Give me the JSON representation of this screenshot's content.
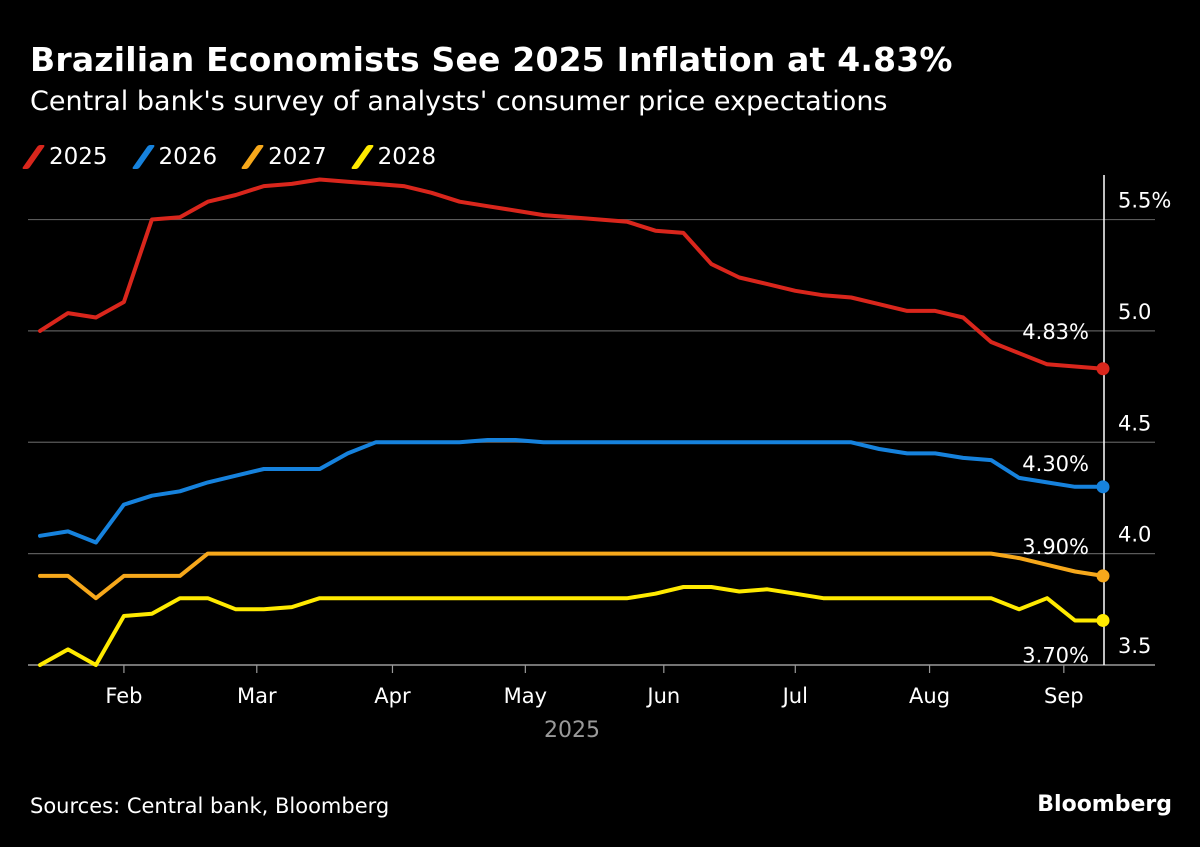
{
  "title": "Brazilian Economists See 2025 Inflation at 4.83%",
  "subtitle": "Central bank's survey of analysts' consumer price expectations",
  "source": "Sources: Central bank, Bloomberg",
  "brand": "Bloomberg",
  "chart_data": {
    "type": "line",
    "xlabel": "2025",
    "ylabel": "",
    "ylim": [
      3.5,
      5.7
    ],
    "xlim": [
      0,
      38
    ],
    "x_unit": "weeks since early January 2025",
    "y_ticks": [
      {
        "value": 3.5,
        "label": "3.5"
      },
      {
        "value": 4.0,
        "label": "4.0"
      },
      {
        "value": 4.5,
        "label": "4.5"
      },
      {
        "value": 5.0,
        "label": "5.0"
      },
      {
        "value": 5.5,
        "label": "5.5%"
      }
    ],
    "x_ticks": [
      {
        "x": 3.0,
        "label": "Feb"
      },
      {
        "x": 7.75,
        "label": "Mar"
      },
      {
        "x": 12.6,
        "label": "Apr"
      },
      {
        "x": 17.35,
        "label": "May"
      },
      {
        "x": 22.3,
        "label": "Jun"
      },
      {
        "x": 27.0,
        "label": "Jul"
      },
      {
        "x": 31.8,
        "label": "Aug"
      },
      {
        "x": 36.6,
        "label": "Sep"
      }
    ],
    "grid": true,
    "legend": "top-left",
    "series": [
      {
        "name": "2025",
        "color": "#d9261c",
        "end_label": "4.83%",
        "x": [
          0,
          1,
          2,
          3,
          4,
          5,
          6,
          7,
          8,
          9,
          10,
          11,
          12,
          13,
          14,
          15,
          16,
          17,
          18,
          19,
          20,
          21,
          22,
          23,
          24,
          25,
          26,
          27,
          28,
          29,
          30,
          31,
          32,
          33,
          34,
          35,
          36,
          37,
          38
        ],
        "values": [
          5.0,
          5.08,
          5.06,
          5.13,
          5.5,
          5.51,
          5.58,
          5.61,
          5.65,
          5.66,
          5.68,
          5.67,
          5.66,
          5.65,
          5.62,
          5.58,
          5.56,
          5.54,
          5.52,
          5.51,
          5.5,
          5.49,
          5.45,
          5.44,
          5.3,
          5.24,
          5.21,
          5.18,
          5.16,
          5.15,
          5.12,
          5.09,
          5.09,
          5.06,
          4.95,
          4.9,
          4.85,
          4.84,
          4.83
        ]
      },
      {
        "name": "2026",
        "color": "#1682dd",
        "end_label": "4.30%",
        "x": [
          0,
          1,
          2,
          3,
          4,
          5,
          6,
          7,
          8,
          9,
          10,
          11,
          12,
          13,
          14,
          15,
          16,
          17,
          18,
          19,
          20,
          21,
          22,
          23,
          24,
          25,
          26,
          27,
          28,
          29,
          30,
          31,
          32,
          33,
          34,
          35,
          36,
          37,
          38
        ],
        "values": [
          4.08,
          4.1,
          4.05,
          4.22,
          4.26,
          4.28,
          4.32,
          4.35,
          4.38,
          4.38,
          4.38,
          4.45,
          4.5,
          4.5,
          4.5,
          4.5,
          4.51,
          4.51,
          4.5,
          4.5,
          4.5,
          4.5,
          4.5,
          4.5,
          4.5,
          4.5,
          4.5,
          4.5,
          4.5,
          4.5,
          4.47,
          4.45,
          4.45,
          4.43,
          4.42,
          4.34,
          4.32,
          4.3,
          4.3
        ]
      },
      {
        "name": "2027",
        "color": "#f7a81b",
        "end_label": "3.90%",
        "x": [
          0,
          1,
          2,
          3,
          4,
          5,
          6,
          7,
          8,
          9,
          10,
          11,
          12,
          13,
          14,
          15,
          16,
          17,
          18,
          19,
          20,
          21,
          22,
          23,
          24,
          25,
          26,
          27,
          28,
          29,
          30,
          31,
          32,
          33,
          34,
          35,
          36,
          37,
          38
        ],
        "values": [
          3.9,
          3.9,
          3.8,
          3.9,
          3.9,
          3.9,
          4.0,
          4.0,
          4.0,
          4.0,
          4.0,
          4.0,
          4.0,
          4.0,
          4.0,
          4.0,
          4.0,
          4.0,
          4.0,
          4.0,
          4.0,
          4.0,
          4.0,
          4.0,
          4.0,
          4.0,
          4.0,
          4.0,
          4.0,
          4.0,
          4.0,
          4.0,
          4.0,
          4.0,
          4.0,
          3.98,
          3.95,
          3.92,
          3.9
        ]
      },
      {
        "name": "2028",
        "color": "#ffea00",
        "end_label": "3.70%",
        "x": [
          0,
          1,
          2,
          3,
          4,
          5,
          6,
          7,
          8,
          9,
          10,
          11,
          12,
          13,
          14,
          15,
          16,
          17,
          18,
          19,
          20,
          21,
          22,
          23,
          24,
          25,
          26,
          27,
          28,
          29,
          30,
          31,
          32,
          33,
          34,
          35,
          36,
          37,
          38
        ],
        "values": [
          3.5,
          3.57,
          3.5,
          3.72,
          3.73,
          3.8,
          3.8,
          3.75,
          3.75,
          3.76,
          3.8,
          3.8,
          3.8,
          3.8,
          3.8,
          3.8,
          3.8,
          3.8,
          3.8,
          3.8,
          3.8,
          3.8,
          3.82,
          3.85,
          3.85,
          3.83,
          3.84,
          3.82,
          3.8,
          3.8,
          3.8,
          3.8,
          3.8,
          3.8,
          3.8,
          3.75,
          3.8,
          3.7,
          3.7
        ]
      }
    ]
  }
}
